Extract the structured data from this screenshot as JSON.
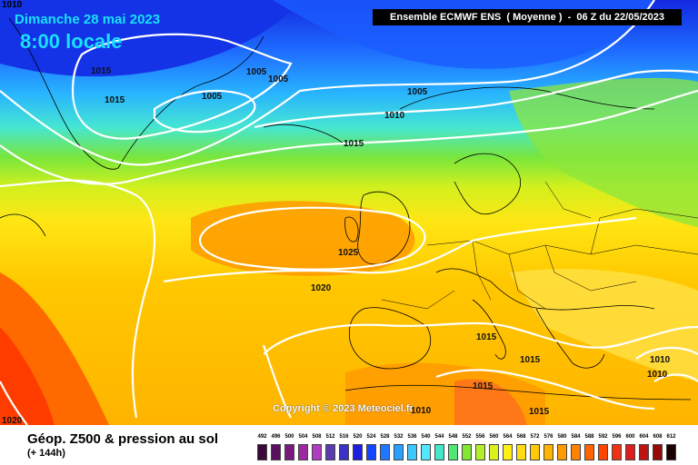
{
  "header": {
    "date": "Dimanche 28 mai 2023",
    "time": "8:00 locale",
    "model": "Ensemble ECMWF ENS  ( Moyenne )  -  06 Z du 22/05/2023",
    "corner": "1010"
  },
  "footer": {
    "title": "Géop. Z500 & pression au sol",
    "subtitle": "(+ 144h)"
  },
  "copyright": "Copyright © 2023 Meteociel.fr",
  "isobars": [
    "1015",
    "1015",
    "1005",
    "1005",
    "1005",
    "1005",
    "1010",
    "1015",
    "1025",
    "1020",
    "1015",
    "1015",
    "1015",
    "1015",
    "1010",
    "1010",
    "1010",
    "1020"
  ],
  "legend": {
    "ticks": [
      "492",
      "496",
      "500",
      "504",
      "508",
      "512",
      "516",
      "520",
      "524",
      "528",
      "532",
      "536",
      "540",
      "544",
      "548",
      "552",
      "556",
      "560",
      "564",
      "568",
      "572",
      "576",
      "580",
      "584",
      "588",
      "592",
      "596",
      "600",
      "604",
      "608",
      "612"
    ],
    "colors": [
      "#3b0a3b",
      "#5a1060",
      "#7a1a80",
      "#9b2aa0",
      "#b23cc0",
      "#5a3cb0",
      "#3c32c8",
      "#1e1ee0",
      "#1446ff",
      "#1e78ff",
      "#28a0ff",
      "#3cc8ff",
      "#55e6ff",
      "#46e6c8",
      "#50e678",
      "#82e632",
      "#b4f028",
      "#dcf01e",
      "#fff014",
      "#ffdc14",
      "#ffc80a",
      "#ffb400",
      "#ff9a00",
      "#ff8200",
      "#ff6400",
      "#ff4600",
      "#f03214",
      "#dc1e1e",
      "#be1414",
      "#960a0a",
      "#1a0000"
    ]
  }
}
